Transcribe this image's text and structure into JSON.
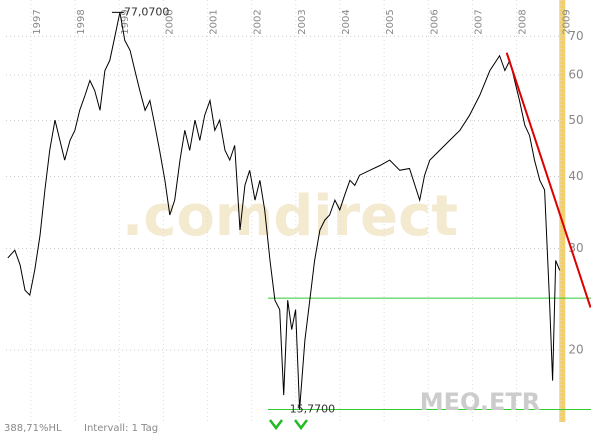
{
  "chart_data": {
    "type": "line",
    "watermark": ".comdirect",
    "symbol": "MEO.ETR",
    "footer_left": "388,71%HL",
    "footer_interval": "Intervall: 1 Tag",
    "annotations": [
      "77,0700",
      "15,7700"
    ],
    "log_y": true,
    "grid": true,
    "xlim": [
      1996.3,
      2009.55
    ],
    "xticks": [
      1997,
      1998,
      1999,
      2000,
      2001,
      2002,
      2003,
      2004,
      2005,
      2006,
      2007,
      2008,
      2009
    ],
    "ylim": [
      15,
      80
    ],
    "yticks": [
      20,
      30,
      40,
      50,
      60,
      70
    ],
    "x": [
      1996.34,
      1996.5,
      1996.62,
      1996.73,
      1996.84,
      1996.95,
      1997.07,
      1997.18,
      1997.29,
      1997.41,
      1997.52,
      1997.63,
      1997.75,
      1997.86,
      1997.97,
      1998.09,
      1998.2,
      1998.31,
      1998.43,
      1998.54,
      1998.65,
      1998.77,
      1998.88,
      1998.99,
      1999.11,
      1999.22,
      1999.33,
      1999.45,
      1999.56,
      1999.67,
      1999.78,
      1999.9,
      2000.01,
      2000.12,
      2000.24,
      2000.35,
      2000.46,
      2000.58,
      2000.69,
      2000.8,
      2000.92,
      2001.03,
      2001.14,
      2001.26,
      2001.37,
      2001.48,
      2001.6,
      2001.71,
      2001.82,
      2001.94,
      2002.05,
      2002.16,
      2002.28,
      2002.39,
      2002.5,
      2002.59,
      2002.68,
      2002.77,
      2002.86,
      2002.95,
      2003.07,
      2003.18,
      2003.29,
      2003.41,
      2003.52,
      2003.63,
      2003.75,
      2003.86,
      2003.97,
      2004.09,
      2004.2,
      2004.31,
      2004.54,
      2004.77,
      2004.99,
      2005.22,
      2005.44,
      2005.67,
      2005.78,
      2005.9,
      2006.12,
      2006.35,
      2006.58,
      2006.8,
      2007.03,
      2007.26,
      2007.48,
      2007.6,
      2007.71,
      2007.82,
      2007.93,
      2008.05,
      2008.16,
      2008.27,
      2008.39,
      2008.5,
      2008.61,
      2008.68,
      2008.75,
      2008.84
    ],
    "series": [
      {
        "color": "#000000",
        "values": [
          28.9,
          29.8,
          28.1,
          25.4,
          24.9,
          27.5,
          31.6,
          37.9,
          44.4,
          50.1,
          46.2,
          42.7,
          46.2,
          48.1,
          52.1,
          55.3,
          58.7,
          56.4,
          52.1,
          61.1,
          63.6,
          70.3,
          77.07,
          68.9,
          66.2,
          61.1,
          56.4,
          52.1,
          54.2,
          49.1,
          44.4,
          39.4,
          34.3,
          36.4,
          42.7,
          48.1,
          44.4,
          50.1,
          46.2,
          51.1,
          54.2,
          48.1,
          50.1,
          44.4,
          42.7,
          45.3,
          32.3,
          38.6,
          41.0,
          36.4,
          39.4,
          35.0,
          28.6,
          24.4,
          23.5,
          16.7,
          24.4,
          21.7,
          23.5,
          15.77,
          20.8,
          24.4,
          28.6,
          32.3,
          33.6,
          34.3,
          36.4,
          35.0,
          37.1,
          39.4,
          38.6,
          40.2,
          41.0,
          41.8,
          42.7,
          41.0,
          41.3,
          36.4,
          40.2,
          42.7,
          44.4,
          46.2,
          48.1,
          51.1,
          55.3,
          61.1,
          64.8,
          61.1,
          63.6,
          58.7,
          54.2,
          49.1,
          47.1,
          42.7,
          39.4,
          37.9,
          24.4,
          17.7,
          28.6,
          27.5
        ]
      }
    ],
    "hlines": {
      "color": "#33cc33",
      "values": [
        24.6,
        15.77
      ]
    },
    "trendline": {
      "color": "#dd0000",
      "x": [
        2007.64,
        2009.54
      ],
      "values": [
        65.6,
        23.7
      ]
    },
    "highlight": {
      "color": "#f0d070",
      "x": 2008.9
    }
  }
}
